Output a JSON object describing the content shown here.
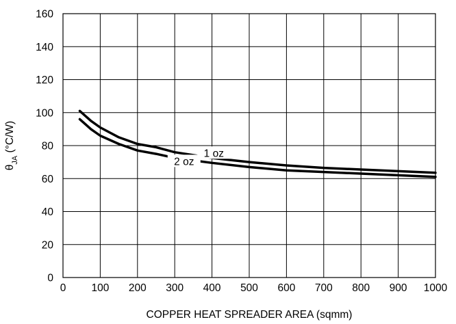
{
  "chart_data": {
    "type": "line",
    "title": "",
    "xlabel": "COPPER HEAT SPREADER AREA (sqmm)",
    "ylabel": {
      "symbol": "θ",
      "subscript": "JA",
      "unit": " (°C/W)"
    },
    "xlim": [
      0,
      1000
    ],
    "ylim": [
      0,
      160
    ],
    "x_ticks": [
      0,
      100,
      200,
      300,
      400,
      500,
      600,
      700,
      800,
      900,
      1000
    ],
    "y_ticks": [
      0,
      20,
      40,
      60,
      80,
      100,
      120,
      140,
      160
    ],
    "grid": true,
    "series": [
      {
        "name": "1 oz",
        "x": [
          45,
          75,
          100,
          150,
          200,
          250,
          300,
          400,
          500,
          600,
          700,
          800,
          900,
          1000
        ],
        "values": [
          101,
          95,
          91,
          85,
          81,
          79,
          76,
          72.5,
          70,
          68,
          66.5,
          65.5,
          64.5,
          63.5
        ]
      },
      {
        "name": "2 oz",
        "x": [
          45,
          75,
          100,
          150,
          200,
          250,
          300,
          400,
          500,
          600,
          700,
          800,
          900,
          1000
        ],
        "values": [
          96,
          90,
          86,
          81,
          77,
          75,
          72.5,
          69.5,
          67,
          65,
          64,
          63,
          62,
          61
        ]
      }
    ],
    "annotations": [
      {
        "series": "1 oz",
        "text": "1 oz",
        "x": 405,
        "y": 74.5
      },
      {
        "series": "2 oz",
        "text": "2 oz",
        "x": 325,
        "y": 69.5
      }
    ]
  }
}
